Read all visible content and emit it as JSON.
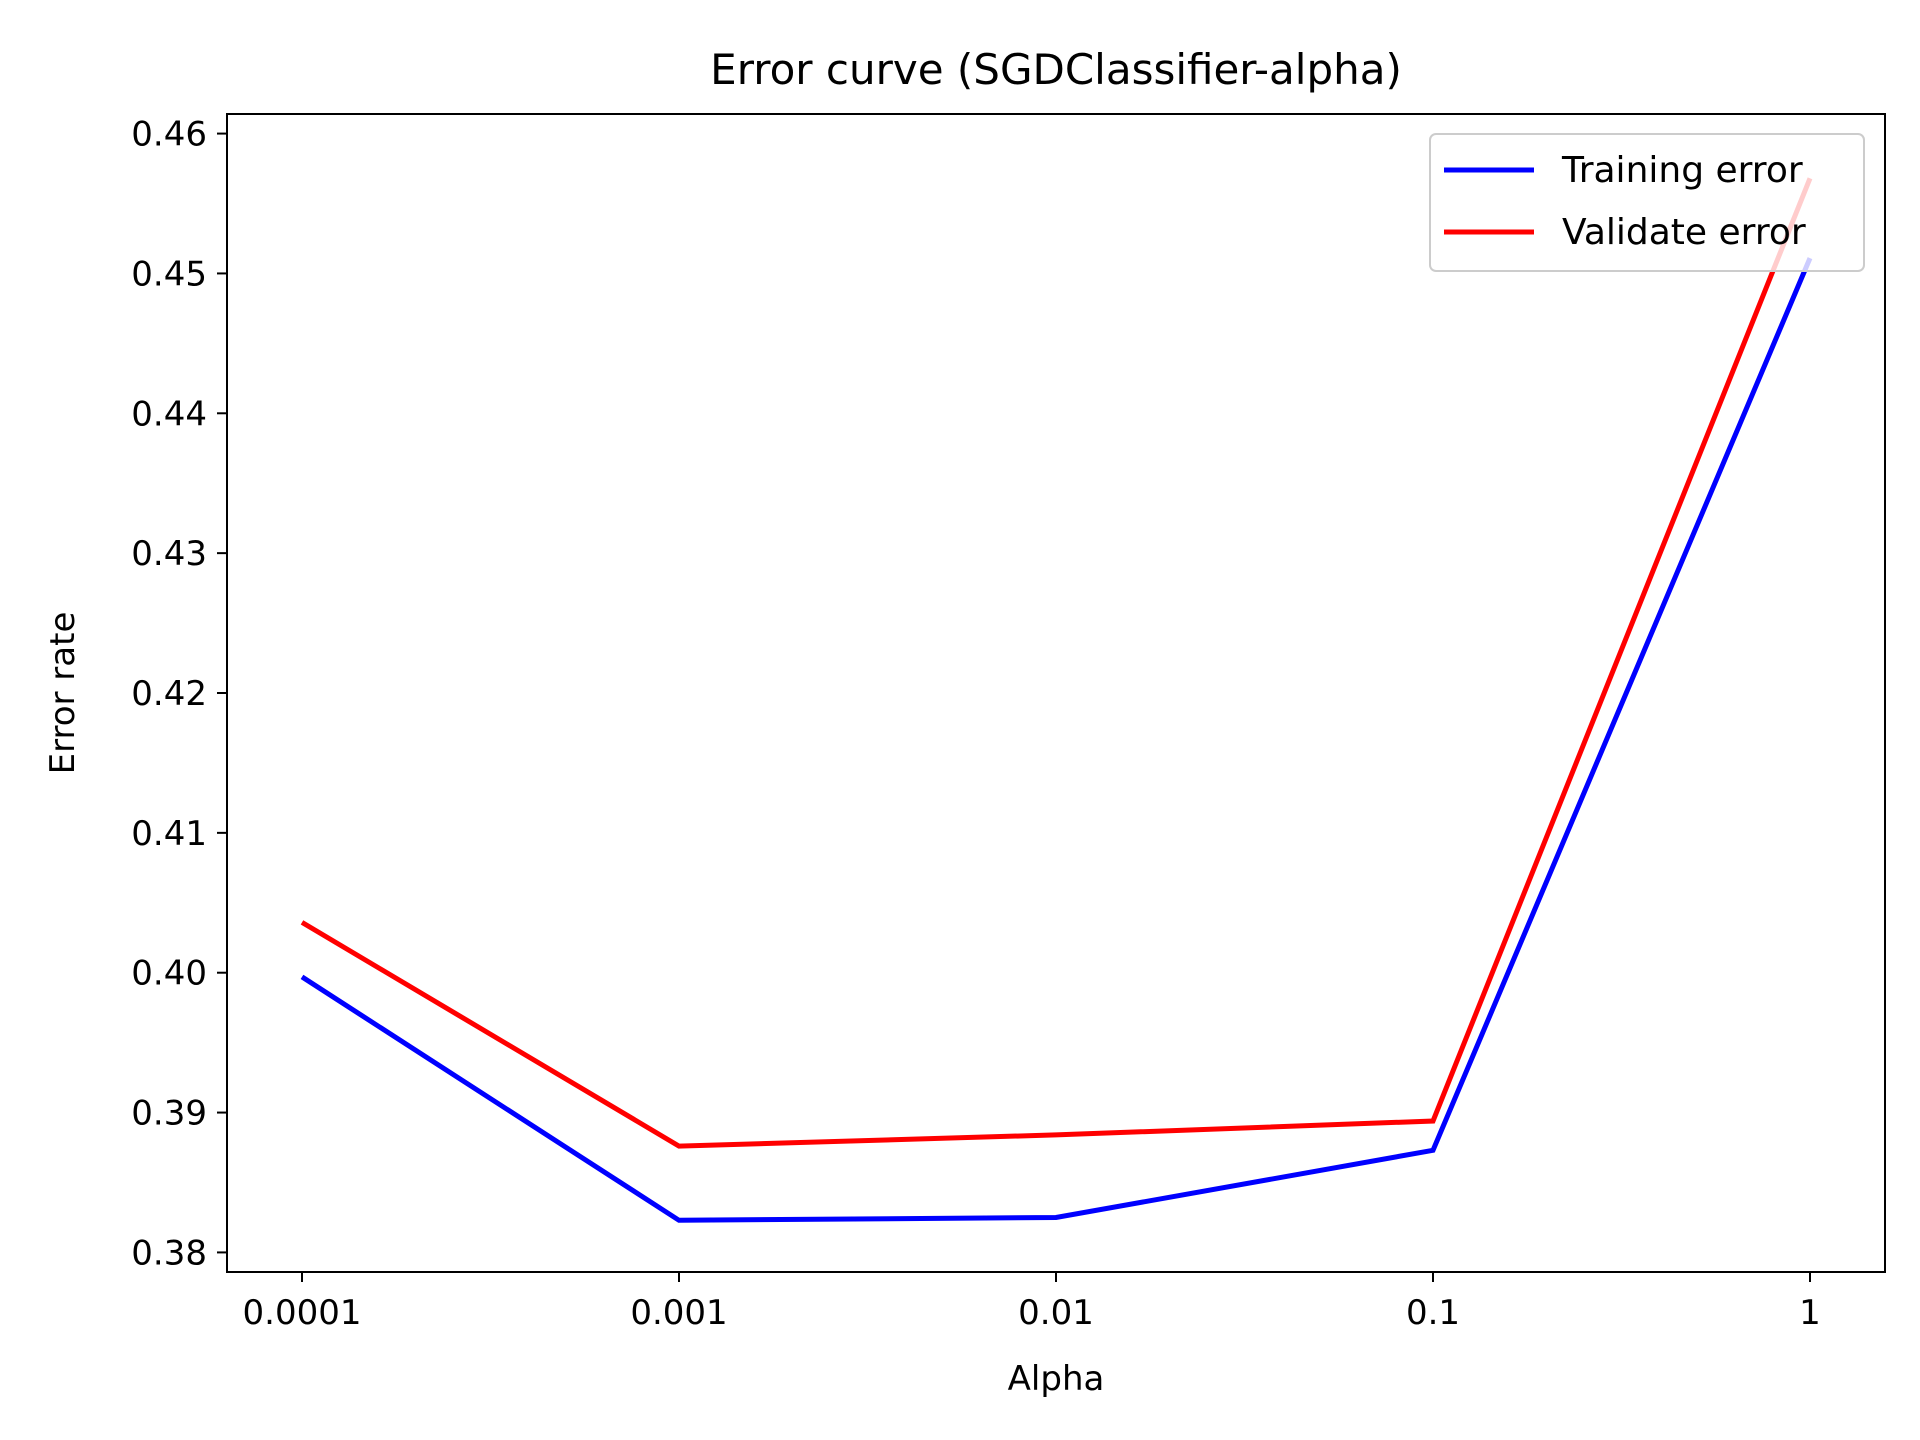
{
  "chart_data": {
    "type": "line",
    "title": "Error curve (SGDClassifier-alpha)",
    "xlabel": "Alpha",
    "ylabel": "Error rate",
    "categories": [
      "0.0001",
      "0.001",
      "0.01",
      "0.1",
      "1"
    ],
    "yticks": [
      "0.38",
      "0.39",
      "0.40",
      "0.41",
      "0.42",
      "0.43",
      "0.44",
      "0.45",
      "0.46"
    ],
    "ylim": [
      0.3786,
      0.4614
    ],
    "grid": false,
    "legend_position": "top-right",
    "series": [
      {
        "name": "Training error",
        "color": "#0000ff",
        "values": [
          0.3997,
          0.3823,
          0.3825,
          0.3873,
          0.4511
        ]
      },
      {
        "name": "Validate error",
        "color": "#ff0000",
        "values": [
          0.4036,
          0.3876,
          0.3884,
          0.3894,
          0.4568
        ]
      }
    ]
  }
}
